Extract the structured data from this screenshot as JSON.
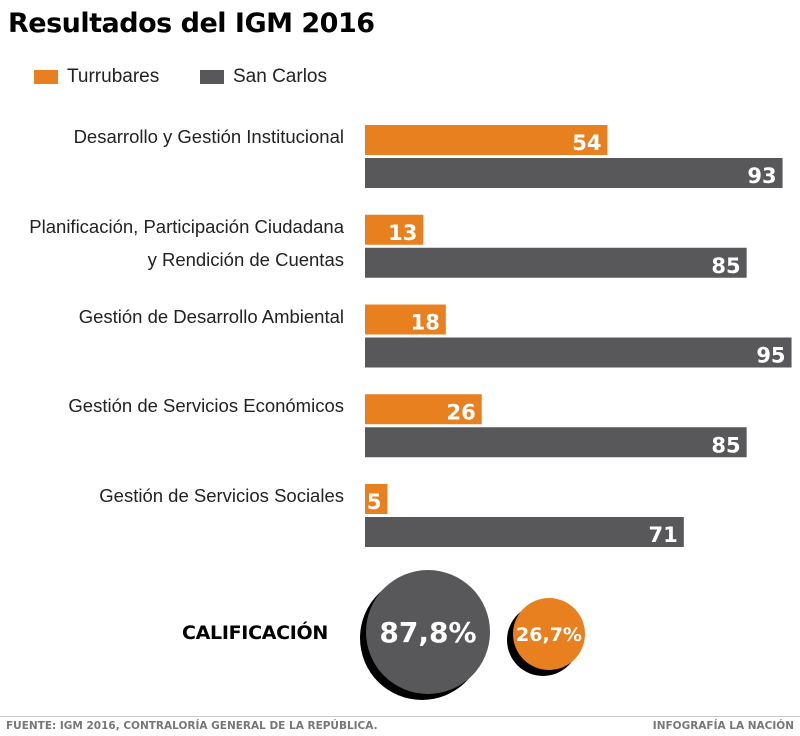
{
  "chart_data": {
    "type": "bar",
    "orientation": "horizontal",
    "title": "Resultados del IGM 2016",
    "xlabel": "",
    "ylabel": "",
    "xlim": [
      0,
      100
    ],
    "grid": false,
    "legend_position": "top-left",
    "categories": [
      [
        "Desarrollo y Gestión Institucional"
      ],
      [
        "Planificación, Participación Ciudadana",
        "y Rendición de Cuentas"
      ],
      [
        "Gestión de Desarrollo Ambiental"
      ],
      [
        "Gestión de Servicios Económicos"
      ],
      [
        "Gestión de Servicios Sociales"
      ]
    ],
    "series": [
      {
        "name": "Turrubares",
        "color": "#e8801f",
        "values": [
          54,
          13,
          18,
          26,
          5
        ]
      },
      {
        "name": "San Carlos",
        "color": "#58585a",
        "values": [
          93,
          85,
          95,
          85,
          71
        ]
      }
    ],
    "summary": {
      "label": "CALIFICACIÓN",
      "items": [
        {
          "series": "San Carlos",
          "value": 87.8,
          "display": "87,8%",
          "color": "#58585a"
        },
        {
          "series": "Turrubares",
          "value": 26.7,
          "display": "26,7%",
          "color": "#e8801f"
        }
      ]
    }
  },
  "footer": {
    "source": "FUENTE:  IGM 2016, CONTRALORÍA GENERAL DE LA REPÚBLICA.",
    "credit": "INFOGRAFÍA LA NACIÓN"
  }
}
